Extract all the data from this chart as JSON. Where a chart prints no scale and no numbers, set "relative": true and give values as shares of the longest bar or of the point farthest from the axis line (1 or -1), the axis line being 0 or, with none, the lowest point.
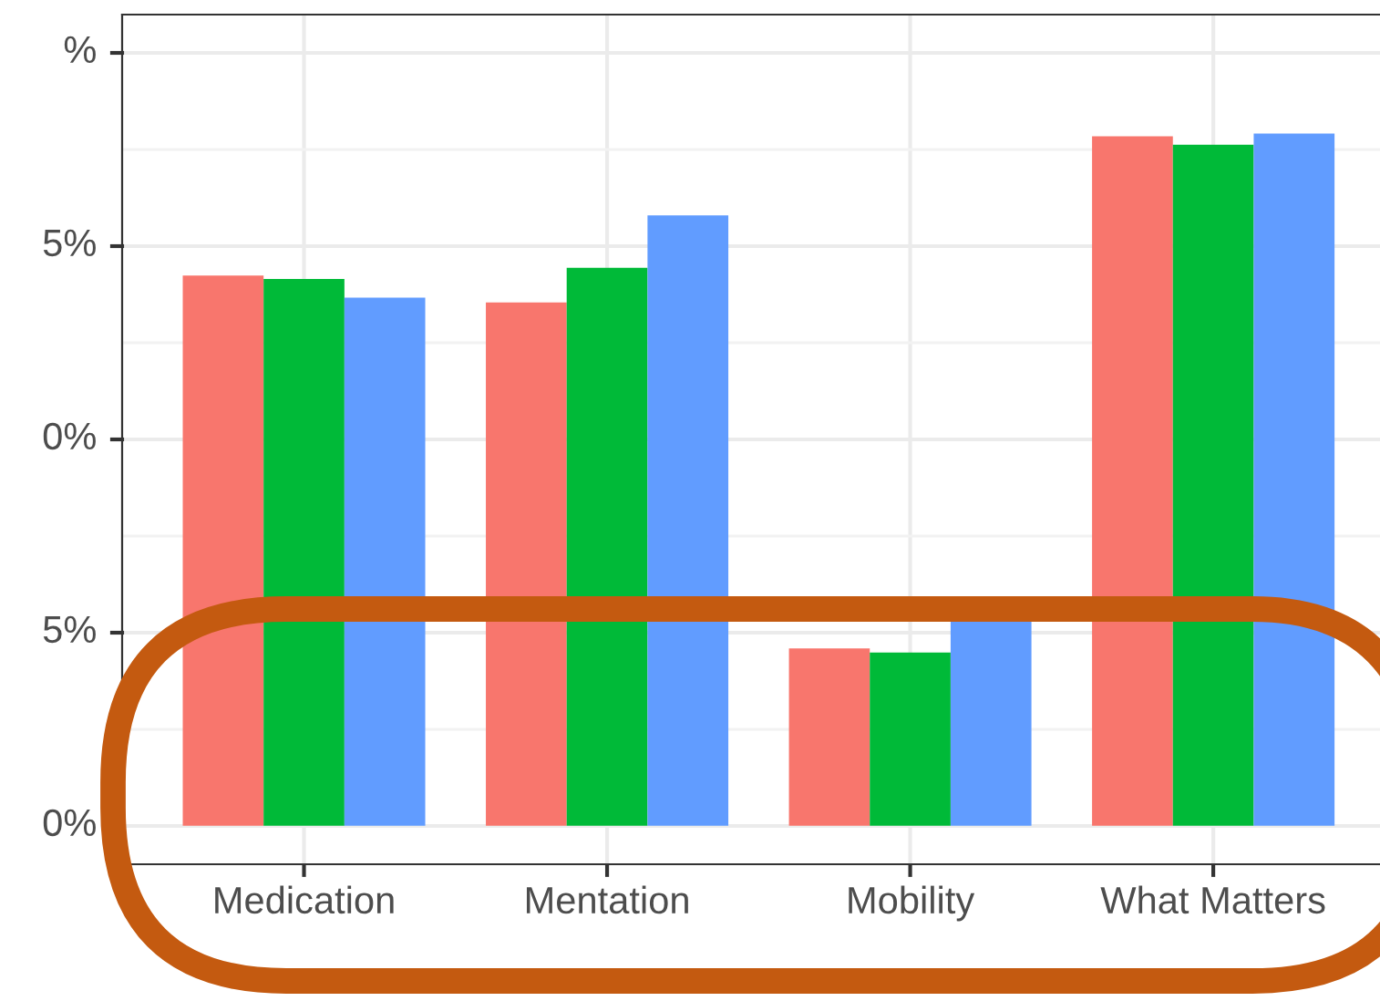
{
  "chart_data": {
    "type": "bar",
    "categories": [
      "Medication",
      "Mentation",
      "Mobility",
      "What Matters"
    ],
    "relative": true,
    "series": [
      {
        "color": "#f8766d",
        "values": [
          0.795,
          0.756,
          0.256,
          0.996
        ]
      },
      {
        "color": "#00ba38",
        "values": [
          0.79,
          0.806,
          0.25,
          0.984
        ]
      },
      {
        "color": "#619cff",
        "values": [
          0.763,
          0.882,
          0.3,
          1
        ]
      }
    ],
    "annotations": [
      "0%",
      "5%",
      "0%",
      "5%",
      "%"
    ],
    "grid": true
  }
}
